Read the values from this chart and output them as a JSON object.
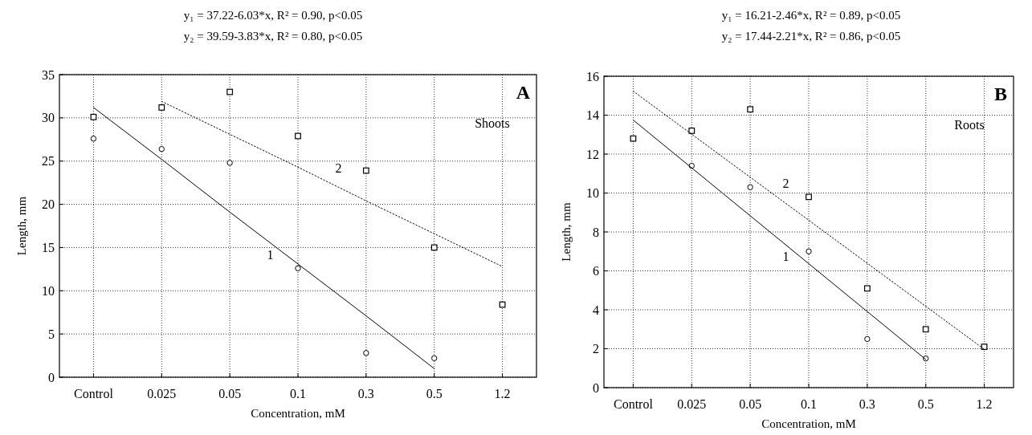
{
  "chart_data": [
    {
      "type": "scatter",
      "title": "y₁ = 37.22-6.03*x, R² = 0.90, p<0.05",
      "subtitle": "y₂ = 39.59-3.83*x, R² = 0.80, p<0.05",
      "xlabel": "Concentration, mM",
      "ylabel": "Length, mm",
      "categories": [
        "Control",
        "0.025",
        "0.05",
        "0.1",
        "0.3",
        "0.5",
        "1.2"
      ],
      "ylim": [
        0,
        35
      ],
      "yticks": [
        0,
        5,
        10,
        15,
        20,
        25,
        30,
        35
      ],
      "grid": true,
      "series": [
        {
          "marker": "circle",
          "color": "#000000",
          "values": [
            27.6,
            26.4,
            24.8,
            12.6,
            2.8,
            2.2,
            null
          ]
        },
        {
          "marker": "square",
          "color": "#000000",
          "values": [
            30.1,
            31.2,
            33.0,
            27.9,
            23.9,
            15.0,
            8.4
          ]
        },
        {
          "type": "line",
          "name": "1",
          "marker": "none",
          "line_style": "solid",
          "color": "#000000",
          "values": [
            31.2,
            25.2,
            19.1,
            13.1,
            7.1,
            1.0,
            null
          ]
        },
        {
          "type": "line",
          "name": "2",
          "marker": "none",
          "line_style": "dotted",
          "color": "#000000",
          "values": [
            null,
            31.9,
            28.1,
            24.3,
            20.4,
            16.6,
            12.8
          ]
        }
      ],
      "annotations": [
        "A",
        "Shoots"
      ]
    },
    {
      "type": "scatter",
      "title": "y₁ = 16.21-2.46*x, R² = 0.89, p<0.05",
      "subtitle": "y₂ = 17.44-2.21*x, R² = 0.86, p<0.05",
      "xlabel": "Concentration, mM",
      "ylabel": "Length, mm",
      "categories": [
        "Control",
        "0.025",
        "0.05",
        "0.1",
        "0.3",
        "0.5",
        "1.2"
      ],
      "ylim": [
        0,
        16
      ],
      "yticks": [
        0,
        2,
        4,
        6,
        8,
        10,
        12,
        14,
        16
      ],
      "grid": true,
      "series": [
        {
          "marker": "circle",
          "color": "#000000",
          "values": [
            null,
            11.4,
            10.3,
            7.0,
            2.5,
            1.5,
            null
          ]
        },
        {
          "marker": "square",
          "color": "#000000",
          "values": [
            12.8,
            13.2,
            14.3,
            9.8,
            5.1,
            3.0,
            2.1
          ]
        },
        {
          "type": "line",
          "name": "1",
          "marker": "none",
          "line_style": "solid",
          "color": "#000000",
          "values": [
            13.75,
            11.29,
            8.83,
            6.37,
            3.91,
            1.45,
            null
          ]
        },
        {
          "type": "line",
          "name": "2",
          "marker": "none",
          "line_style": "dotted",
          "color": "#000000",
          "values": [
            15.23,
            13.02,
            10.81,
            8.6,
            6.39,
            4.18,
            1.97
          ]
        }
      ],
      "annotations": [
        "B",
        "Roots"
      ]
    }
  ]
}
